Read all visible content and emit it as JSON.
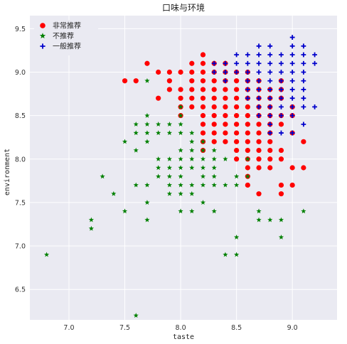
{
  "chart_data": {
    "type": "scatter",
    "title": "口味与环境",
    "xlabel": "taste",
    "ylabel": "environment",
    "xlim": [
      6.65,
      9.4
    ],
    "ylim": [
      6.15,
      9.65
    ],
    "xticks": [
      "7.0",
      "7.5",
      "8.0",
      "8.5",
      "9.0"
    ],
    "yticks": [
      "6.5",
      "7.0",
      "7.5",
      "8.0",
      "8.5",
      "9.0",
      "9.5"
    ],
    "grid": true,
    "legend_position": "top-left",
    "series": [
      {
        "name": "非常推荐",
        "marker": "circle",
        "color": "#ff0000",
        "points": [
          [
            7.5,
            8.9
          ],
          [
            7.6,
            8.9
          ],
          [
            7.7,
            9.1
          ],
          [
            7.8,
            9.0
          ],
          [
            7.8,
            8.7
          ],
          [
            7.9,
            9.0
          ],
          [
            7.9,
            8.9
          ],
          [
            7.9,
            8.8
          ],
          [
            8.0,
            9.0
          ],
          [
            8.0,
            8.8
          ],
          [
            8.0,
            8.7
          ],
          [
            8.0,
            8.6
          ],
          [
            8.0,
            8.5
          ],
          [
            8.1,
            9.1
          ],
          [
            8.1,
            9.0
          ],
          [
            8.1,
            8.9
          ],
          [
            8.1,
            8.8
          ],
          [
            8.1,
            8.7
          ],
          [
            8.1,
            8.6
          ],
          [
            8.2,
            9.2
          ],
          [
            8.2,
            9.1
          ],
          [
            8.2,
            9.0
          ],
          [
            8.2,
            8.9
          ],
          [
            8.2,
            8.8
          ],
          [
            8.2,
            8.7
          ],
          [
            8.2,
            8.6
          ],
          [
            8.2,
            8.5
          ],
          [
            8.2,
            8.4
          ],
          [
            8.2,
            8.3
          ],
          [
            8.2,
            8.2
          ],
          [
            8.2,
            8.1
          ],
          [
            8.3,
            9.1
          ],
          [
            8.3,
            9.0
          ],
          [
            8.3,
            8.9
          ],
          [
            8.3,
            8.8
          ],
          [
            8.3,
            8.7
          ],
          [
            8.3,
            8.6
          ],
          [
            8.3,
            8.5
          ],
          [
            8.3,
            8.4
          ],
          [
            8.3,
            8.3
          ],
          [
            8.3,
            8.2
          ],
          [
            8.4,
            9.1
          ],
          [
            8.4,
            9.0
          ],
          [
            8.4,
            8.9
          ],
          [
            8.4,
            8.8
          ],
          [
            8.4,
            8.7
          ],
          [
            8.4,
            8.6
          ],
          [
            8.4,
            8.5
          ],
          [
            8.4,
            8.4
          ],
          [
            8.4,
            8.3
          ],
          [
            8.4,
            8.2
          ],
          [
            8.5,
            9.0
          ],
          [
            8.5,
            8.9
          ],
          [
            8.5,
            8.8
          ],
          [
            8.5,
            8.7
          ],
          [
            8.5,
            8.6
          ],
          [
            8.5,
            8.5
          ],
          [
            8.5,
            8.4
          ],
          [
            8.5,
            8.3
          ],
          [
            8.5,
            8.2
          ],
          [
            8.5,
            8.1
          ],
          [
            8.5,
            8.0
          ],
          [
            8.6,
            9.0
          ],
          [
            8.6,
            8.9
          ],
          [
            8.6,
            8.8
          ],
          [
            8.6,
            8.7
          ],
          [
            8.6,
            8.6
          ],
          [
            8.6,
            8.5
          ],
          [
            8.6,
            8.4
          ],
          [
            8.6,
            8.3
          ],
          [
            8.6,
            8.2
          ],
          [
            8.6,
            8.1
          ],
          [
            8.6,
            8.0
          ],
          [
            8.6,
            7.9
          ],
          [
            8.6,
            7.8
          ],
          [
            8.6,
            7.7
          ],
          [
            8.7,
            8.9
          ],
          [
            8.7,
            8.8
          ],
          [
            8.7,
            8.7
          ],
          [
            8.7,
            8.6
          ],
          [
            8.7,
            8.5
          ],
          [
            8.7,
            8.4
          ],
          [
            8.7,
            8.3
          ],
          [
            8.7,
            8.2
          ],
          [
            8.7,
            8.1
          ],
          [
            8.7,
            8.0
          ],
          [
            8.7,
            7.9
          ],
          [
            8.7,
            7.6
          ],
          [
            8.8,
            8.8
          ],
          [
            8.8,
            8.7
          ],
          [
            8.8,
            8.6
          ],
          [
            8.8,
            8.5
          ],
          [
            8.8,
            8.4
          ],
          [
            8.8,
            8.3
          ],
          [
            8.8,
            8.2
          ],
          [
            8.8,
            8.1
          ],
          [
            8.8,
            8.0
          ],
          [
            8.8,
            7.9
          ],
          [
            8.9,
            8.9
          ],
          [
            8.9,
            8.8
          ],
          [
            8.9,
            8.7
          ],
          [
            8.9,
            8.5
          ],
          [
            8.9,
            8.4
          ],
          [
            8.9,
            8.1
          ],
          [
            8.9,
            8.0
          ],
          [
            8.9,
            7.7
          ],
          [
            8.9,
            7.6
          ],
          [
            9.0,
            8.6
          ],
          [
            9.0,
            8.5
          ],
          [
            9.0,
            8.3
          ],
          [
            9.0,
            7.9
          ],
          [
            9.0,
            7.7
          ],
          [
            9.1,
            8.2
          ],
          [
            9.1,
            7.9
          ]
        ]
      },
      {
        "name": "不推荐",
        "marker": "star",
        "color": "#008000",
        "points": [
          [
            6.8,
            6.9
          ],
          [
            7.2,
            7.3
          ],
          [
            7.2,
            7.2
          ],
          [
            7.3,
            7.8
          ],
          [
            7.4,
            7.6
          ],
          [
            7.5,
            8.2
          ],
          [
            7.5,
            7.4
          ],
          [
            7.6,
            8.4
          ],
          [
            7.6,
            8.3
          ],
          [
            7.6,
            8.1
          ],
          [
            7.6,
            7.7
          ],
          [
            7.6,
            6.2
          ],
          [
            7.7,
            8.9
          ],
          [
            7.7,
            8.5
          ],
          [
            7.7,
            8.4
          ],
          [
            7.7,
            8.3
          ],
          [
            7.7,
            8.2
          ],
          [
            7.7,
            7.7
          ],
          [
            7.7,
            7.5
          ],
          [
            7.7,
            7.3
          ],
          [
            7.8,
            8.4
          ],
          [
            7.8,
            8.3
          ],
          [
            7.8,
            8.0
          ],
          [
            7.8,
            7.9
          ],
          [
            7.8,
            7.8
          ],
          [
            7.9,
            8.4
          ],
          [
            7.9,
            8.3
          ],
          [
            7.9,
            8.0
          ],
          [
            7.9,
            7.9
          ],
          [
            7.9,
            7.8
          ],
          [
            7.9,
            7.7
          ],
          [
            7.9,
            7.6
          ],
          [
            8.0,
            8.6
          ],
          [
            8.0,
            8.5
          ],
          [
            8.0,
            8.4
          ],
          [
            8.0,
            8.3
          ],
          [
            8.0,
            8.1
          ],
          [
            8.0,
            8.0
          ],
          [
            8.0,
            7.9
          ],
          [
            8.0,
            7.8
          ],
          [
            8.0,
            7.7
          ],
          [
            8.0,
            7.6
          ],
          [
            8.0,
            7.4
          ],
          [
            8.1,
            8.3
          ],
          [
            8.1,
            8.2
          ],
          [
            8.1,
            8.1
          ],
          [
            8.1,
            8.0
          ],
          [
            8.1,
            7.9
          ],
          [
            8.1,
            7.7
          ],
          [
            8.1,
            7.6
          ],
          [
            8.1,
            7.4
          ],
          [
            8.2,
            8.2
          ],
          [
            8.2,
            8.1
          ],
          [
            8.2,
            8.0
          ],
          [
            8.2,
            7.9
          ],
          [
            8.2,
            7.8
          ],
          [
            8.2,
            7.7
          ],
          [
            8.2,
            7.5
          ],
          [
            8.3,
            8.1
          ],
          [
            8.3,
            8.0
          ],
          [
            8.3,
            7.9
          ],
          [
            8.3,
            7.8
          ],
          [
            8.3,
            7.7
          ],
          [
            8.3,
            7.4
          ],
          [
            8.4,
            8.0
          ],
          [
            8.4,
            7.7
          ],
          [
            8.4,
            6.9
          ],
          [
            8.5,
            7.8
          ],
          [
            8.5,
            7.7
          ],
          [
            8.5,
            7.1
          ],
          [
            8.5,
            6.9
          ],
          [
            8.6,
            8.0
          ],
          [
            8.6,
            7.8
          ],
          [
            8.7,
            7.4
          ],
          [
            8.7,
            7.3
          ],
          [
            8.8,
            7.3
          ],
          [
            8.9,
            7.3
          ],
          [
            8.9,
            7.1
          ],
          [
            9.1,
            7.4
          ]
        ]
      },
      {
        "name": "一般推荐",
        "marker": "plus",
        "color": "#0000cc",
        "points": [
          [
            8.3,
            9.1
          ],
          [
            8.3,
            9.0
          ],
          [
            8.4,
            9.1
          ],
          [
            8.4,
            9.0
          ],
          [
            8.4,
            8.9
          ],
          [
            8.5,
            9.2
          ],
          [
            8.5,
            9.1
          ],
          [
            8.5,
            9.0
          ],
          [
            8.6,
            9.2
          ],
          [
            8.6,
            9.1
          ],
          [
            8.6,
            9.0
          ],
          [
            8.6,
            8.9
          ],
          [
            8.6,
            8.8
          ],
          [
            8.6,
            8.7
          ],
          [
            8.7,
            9.3
          ],
          [
            8.7,
            9.2
          ],
          [
            8.7,
            9.1
          ],
          [
            8.7,
            9.0
          ],
          [
            8.7,
            8.9
          ],
          [
            8.7,
            8.8
          ],
          [
            8.7,
            8.7
          ],
          [
            8.7,
            8.6
          ],
          [
            8.7,
            8.5
          ],
          [
            8.8,
            9.3
          ],
          [
            8.8,
            9.2
          ],
          [
            8.8,
            9.1
          ],
          [
            8.8,
            9.0
          ],
          [
            8.8,
            8.9
          ],
          [
            8.8,
            8.8
          ],
          [
            8.8,
            8.7
          ],
          [
            8.8,
            8.6
          ],
          [
            8.8,
            8.5
          ],
          [
            8.8,
            8.4
          ],
          [
            8.8,
            8.3
          ],
          [
            8.9,
            9.2
          ],
          [
            8.9,
            9.1
          ],
          [
            8.9,
            9.0
          ],
          [
            8.9,
            8.9
          ],
          [
            8.9,
            8.8
          ],
          [
            8.9,
            8.7
          ],
          [
            8.9,
            8.6
          ],
          [
            8.9,
            8.5
          ],
          [
            8.9,
            8.3
          ],
          [
            9.0,
            9.4
          ],
          [
            9.0,
            9.3
          ],
          [
            9.0,
            9.2
          ],
          [
            9.0,
            9.1
          ],
          [
            9.0,
            9.0
          ],
          [
            9.0,
            8.9
          ],
          [
            9.0,
            8.8
          ],
          [
            9.0,
            8.7
          ],
          [
            9.0,
            8.6
          ],
          [
            9.0,
            8.5
          ],
          [
            9.0,
            8.3
          ],
          [
            9.1,
            9.3
          ],
          [
            9.1,
            9.2
          ],
          [
            9.1,
            9.1
          ],
          [
            9.1,
            9.0
          ],
          [
            9.1,
            8.9
          ],
          [
            9.1,
            8.8
          ],
          [
            9.1,
            8.7
          ],
          [
            9.1,
            8.6
          ],
          [
            9.1,
            8.4
          ],
          [
            9.2,
            9.2
          ],
          [
            9.2,
            9.1
          ],
          [
            9.2,
            8.6
          ]
        ]
      }
    ]
  }
}
